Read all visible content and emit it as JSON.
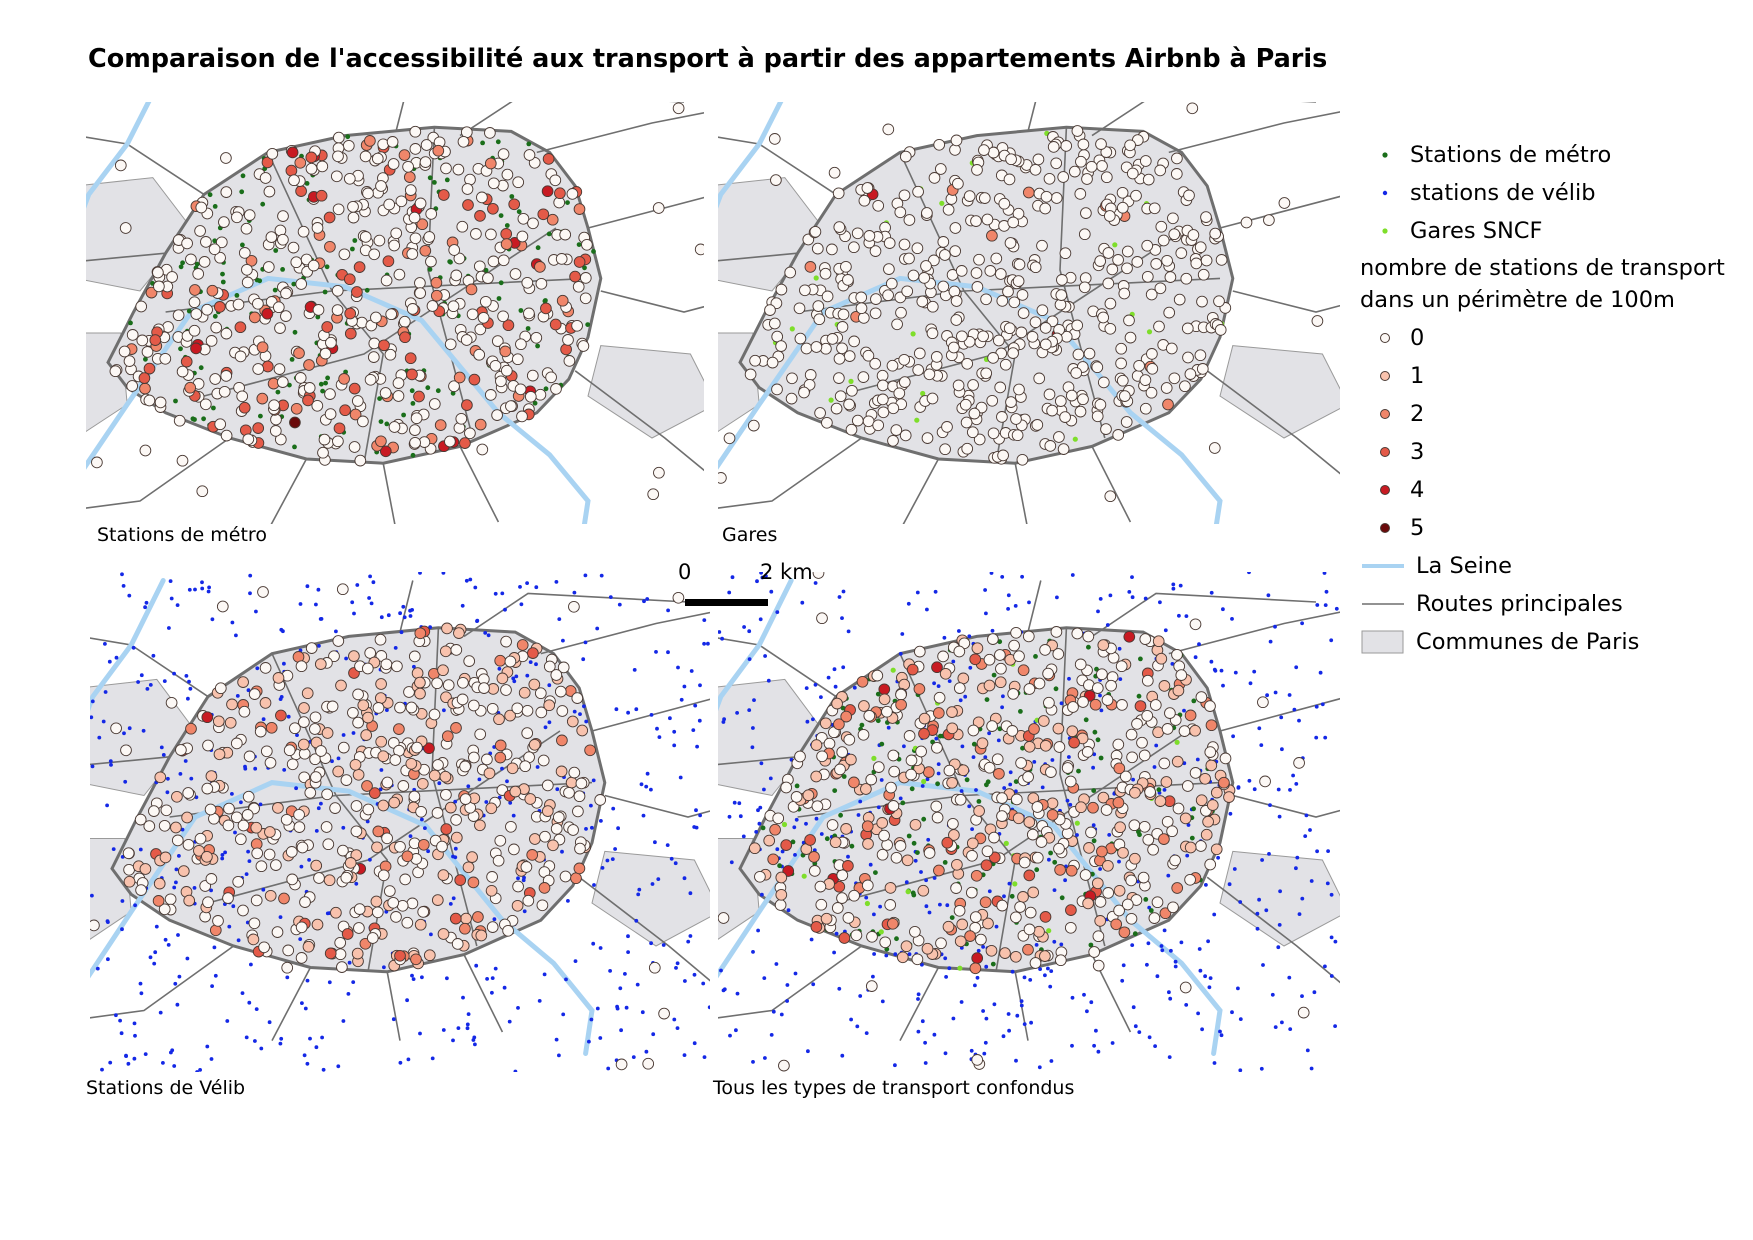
{
  "title": "Comparaison de l'accessibilité aux transport à partir des appartements Airbnb à Paris",
  "colors": {
    "background": "#ffffff",
    "commune_fill": "#e2e2e6",
    "commune_stroke": "#9a9a9a",
    "road": "#6f6f6f",
    "seine": "#a9d3f2",
    "metro": "#1a6e1a",
    "velib": "#1428e6",
    "gare": "#7ede2a",
    "airbnb_stroke": "#4a3a34",
    "class_colors": [
      "#fcf8f5",
      "#f8c2ad",
      "#f0866a",
      "#e45a48",
      "#c81a22",
      "#6a0a0a"
    ]
  },
  "panels": [
    {
      "id": "metro",
      "caption": "Stations de métro",
      "layers": [
        "metro"
      ]
    },
    {
      "id": "gares",
      "caption": "Gares",
      "layers": [
        "gare"
      ]
    },
    {
      "id": "velib",
      "caption": "Stations de Vélib",
      "layers": [
        "velib"
      ]
    },
    {
      "id": "all",
      "caption": "Tous les types de transport confondus",
      "layers": [
        "velib",
        "metro",
        "gare"
      ]
    }
  ],
  "scalebar": {
    "start": "0",
    "end": "2 km"
  },
  "legend": {
    "metro": {
      "label": "Stations de métro",
      "icon": "small-dark-green-dot"
    },
    "velib": {
      "label": "stations de vélib",
      "icon": "small-blue-dot"
    },
    "gare": {
      "label": "Gares SNCF",
      "icon": "small-light-green-dot"
    },
    "classes_title_1": "nombre de stations de transport",
    "classes_title_2": "dans un périmètre de 100m",
    "classes": [
      "0",
      "1",
      "2",
      "3",
      "4",
      "5"
    ],
    "seine": {
      "label": "La Seine",
      "icon": "light-blue-line"
    },
    "routes": {
      "label": "Routes principales",
      "icon": "grey-line"
    },
    "communes": {
      "label": "Communes de Paris",
      "icon": "grey-rectangle"
    }
  }
}
